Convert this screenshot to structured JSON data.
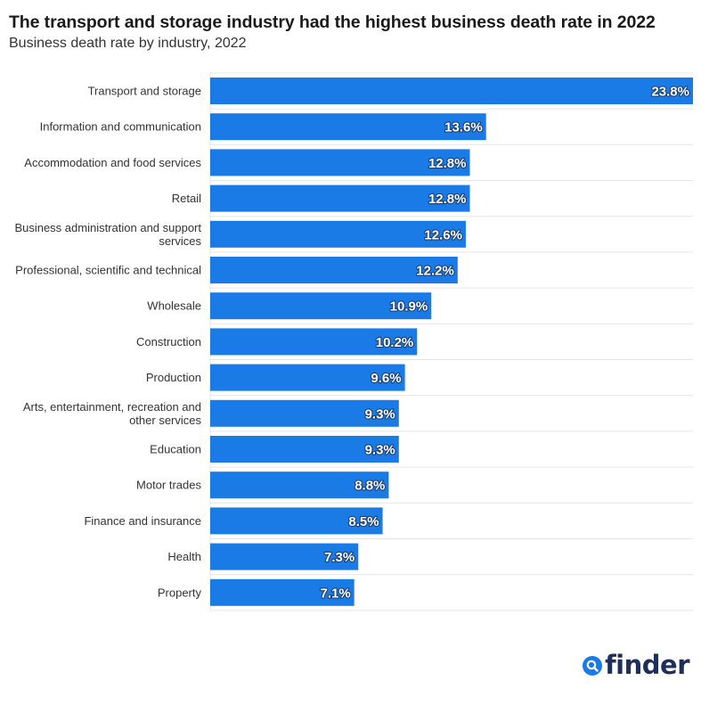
{
  "header": {
    "title": "The transport and storage industry had the highest business death rate in 2022",
    "subtitle": "Business death rate by industry, 2022"
  },
  "brand": {
    "name": "finder",
    "icon": "search-icon",
    "color": "#1a7be6"
  },
  "colors": {
    "bar": "#1a7be6",
    "grid": "#e6e6e6",
    "label": "#333333",
    "value_text": "#ffffff"
  },
  "chart_data": {
    "type": "bar",
    "orientation": "horizontal",
    "title": "The transport and storage industry had the highest business death rate in 2022",
    "subtitle": "Business death rate by industry, 2022",
    "xlabel": "",
    "ylabel": "",
    "xlim": [
      0,
      23.8
    ],
    "grid": true,
    "legend": "none",
    "value_suffix": "%",
    "categories": [
      "Transport and storage",
      "Information and communication",
      "Accommodation and food services",
      "Retail",
      "Business administration and support services",
      "Professional, scientific and technical",
      "Wholesale",
      "Construction",
      "Production",
      "Arts, entertainment, recreation and other services",
      "Education",
      "Motor trades",
      "Finance and insurance",
      "Health",
      "Property"
    ],
    "category_lines": [
      [
        "Transport and storage"
      ],
      [
        "Information and communication"
      ],
      [
        "Accommodation and food services"
      ],
      [
        "Retail"
      ],
      [
        "Business administration and support",
        "services"
      ],
      [
        "Professional, scientific and technical"
      ],
      [
        "Wholesale"
      ],
      [
        "Construction"
      ],
      [
        "Production"
      ],
      [
        "Arts, entertainment, recreation and",
        "other services"
      ],
      [
        "Education"
      ],
      [
        "Motor trades"
      ],
      [
        "Finance and insurance"
      ],
      [
        "Health"
      ],
      [
        "Property"
      ]
    ],
    "values": [
      23.8,
      13.6,
      12.8,
      12.8,
      12.6,
      12.2,
      10.9,
      10.2,
      9.6,
      9.3,
      9.3,
      8.8,
      8.5,
      7.3,
      7.1
    ],
    "value_labels": [
      "23.8%",
      "13.6%",
      "12.8%",
      "12.8%",
      "12.6%",
      "12.2%",
      "10.9%",
      "10.2%",
      "9.6%",
      "9.3%",
      "9.3%",
      "8.8%",
      "8.5%",
      "7.3%",
      "7.1%"
    ]
  }
}
